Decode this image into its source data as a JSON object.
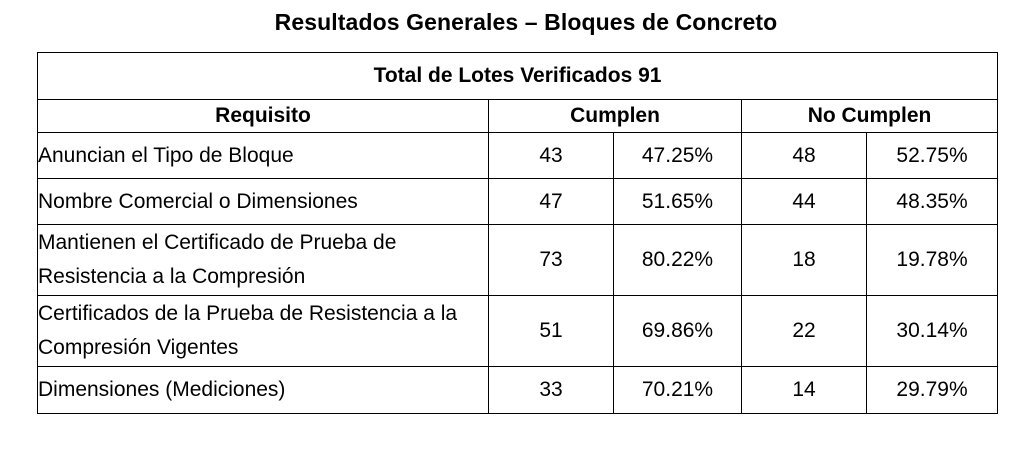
{
  "title": "Resultados Generales – Bloques de Concreto",
  "table": {
    "total_row": "Total de Lotes Verificados 91",
    "headers": {
      "requisito": "Requisito",
      "cumplen": "Cumplen",
      "no_cumplen": "No Cumplen"
    },
    "rows": [
      {
        "requisito": "Anuncian el Tipo de Bloque",
        "cumplen_n": "43",
        "cumplen_pct": "47.25%",
        "no_cumplen_n": "48",
        "no_cumplen_pct": "52.75%"
      },
      {
        "requisito": "Nombre Comercial o Dimensiones",
        "cumplen_n": "47",
        "cumplen_pct": "51.65%",
        "no_cumplen_n": "44",
        "no_cumplen_pct": "48.35%"
      },
      {
        "requisito": "Mantienen el Certificado de Prueba de Resistencia a la Compresión",
        "cumplen_n": "73",
        "cumplen_pct": "80.22%",
        "no_cumplen_n": "18",
        "no_cumplen_pct": "19.78%"
      },
      {
        "requisito": "Certificados de la Prueba de Resistencia a la Compresión Vigentes",
        "cumplen_n": "51",
        "cumplen_pct": "69.86%",
        "no_cumplen_n": "22",
        "no_cumplen_pct": "30.14%"
      },
      {
        "requisito": "Dimensiones (Mediciones)",
        "cumplen_n": "33",
        "cumplen_pct": "70.21%",
        "no_cumplen_n": "14",
        "no_cumplen_pct": "29.79%"
      }
    ]
  }
}
